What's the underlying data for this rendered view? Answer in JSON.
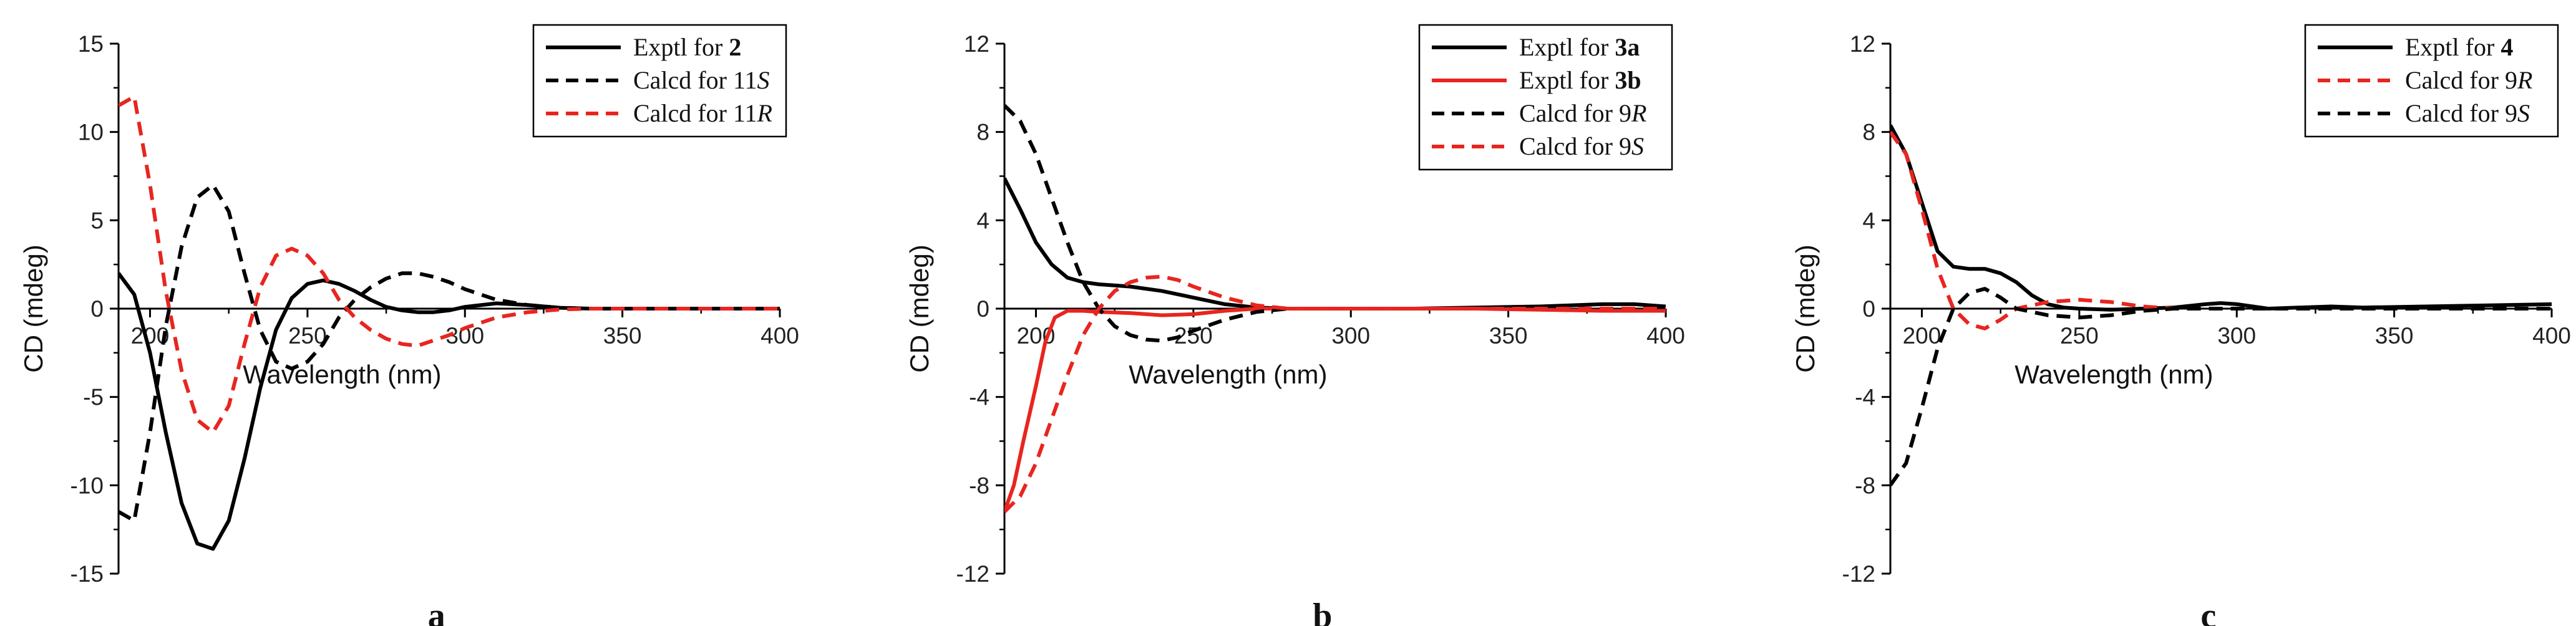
{
  "chart_data": [
    {
      "type": "line",
      "panel_label": "a",
      "xlabel": "Wavelength (nm)",
      "ylabel": "CD (mdeg)",
      "xlim": [
        190,
        400
      ],
      "ylim": [
        -15,
        15
      ],
      "xticks": [
        200,
        250,
        300,
        350,
        400
      ],
      "yticks": [
        -15,
        -10,
        -5,
        0,
        5,
        10,
        15
      ],
      "legend_position": "top-right",
      "series": [
        {
          "name": "Exptl for 2",
          "name_parts": [
            [
              "Exptl for ",
              ""
            ],
            [
              "2",
              "b"
            ]
          ],
          "color": "#000000",
          "dash": "solid",
          "x": [
            190,
            195,
            200,
            205,
            210,
            215,
            220,
            225,
            230,
            235,
            240,
            245,
            250,
            255,
            260,
            265,
            270,
            275,
            280,
            285,
            290,
            295,
            300,
            310,
            320,
            330,
            340,
            350,
            360,
            380,
            400
          ],
          "y": [
            2.0,
            0.8,
            -2.5,
            -7.0,
            -11.0,
            -13.3,
            -13.6,
            -12.0,
            -8.5,
            -4.5,
            -1.2,
            0.6,
            1.4,
            1.6,
            1.4,
            1.0,
            0.5,
            0.1,
            -0.1,
            -0.2,
            -0.2,
            -0.1,
            0.1,
            0.3,
            0.2,
            0.05,
            0,
            0,
            0,
            0,
            0
          ]
        },
        {
          "name": "Calcd for 11S",
          "name_parts": [
            [
              "Calcd for 11",
              ""
            ],
            [
              "S",
              "i"
            ]
          ],
          "color": "#000000",
          "dash": "dashed",
          "x": [
            190,
            195,
            200,
            205,
            210,
            215,
            220,
            225,
            230,
            235,
            240,
            245,
            250,
            255,
            260,
            265,
            270,
            275,
            280,
            285,
            290,
            295,
            300,
            310,
            320,
            330,
            340,
            350,
            360,
            380,
            400
          ],
          "y": [
            -11.5,
            -12.0,
            -7.0,
            -1.0,
            3.5,
            6.3,
            7.0,
            5.5,
            2.0,
            -1.2,
            -3.0,
            -3.4,
            -3.0,
            -2.0,
            -0.5,
            0.5,
            1.2,
            1.7,
            2.0,
            2.0,
            1.8,
            1.5,
            1.1,
            0.5,
            0.2,
            0.05,
            0,
            0,
            0,
            0,
            0
          ]
        },
        {
          "name": "Calcd for 11R",
          "name_parts": [
            [
              "Calcd for 11",
              ""
            ],
            [
              "R",
              "i"
            ]
          ],
          "color": "#e8251f",
          "dash": "dashed",
          "x": [
            190,
            195,
            200,
            205,
            210,
            215,
            220,
            225,
            230,
            235,
            240,
            245,
            250,
            255,
            260,
            265,
            270,
            275,
            280,
            285,
            290,
            295,
            300,
            310,
            320,
            330,
            340,
            350,
            360,
            380,
            400
          ],
          "y": [
            11.5,
            12.0,
            7.0,
            1.0,
            -3.5,
            -6.3,
            -7.0,
            -5.5,
            -2.0,
            1.2,
            3.0,
            3.4,
            3.0,
            2.0,
            0.5,
            -0.5,
            -1.2,
            -1.7,
            -2.0,
            -2.1,
            -1.8,
            -1.5,
            -1.1,
            -0.5,
            -0.2,
            -0.05,
            0,
            0,
            0,
            0,
            0
          ]
        }
      ]
    },
    {
      "type": "line",
      "panel_label": "b",
      "xlabel": "Wavelength (nm)",
      "ylabel": "CD (mdeg)",
      "xlim": [
        190,
        400
      ],
      "ylim": [
        -12,
        12
      ],
      "xticks": [
        200,
        250,
        300,
        350,
        400
      ],
      "yticks": [
        -12,
        -8,
        -4,
        0,
        4,
        8,
        12
      ],
      "legend_position": "top-right",
      "series": [
        {
          "name": "Exptl for 3a",
          "name_parts": [
            [
              "Exptl for ",
              ""
            ],
            [
              "3a",
              "b"
            ]
          ],
          "color": "#000000",
          "dash": "solid",
          "x": [
            190,
            195,
            200,
            205,
            210,
            215,
            220,
            225,
            230,
            240,
            250,
            260,
            270,
            280,
            290,
            300,
            320,
            340,
            360,
            380,
            390,
            400
          ],
          "y": [
            5.9,
            4.5,
            3.0,
            2.0,
            1.4,
            1.2,
            1.1,
            1.05,
            1.0,
            0.8,
            0.5,
            0.2,
            0.05,
            0,
            0,
            0,
            0,
            0.05,
            0.1,
            0.2,
            0.2,
            0.1
          ]
        },
        {
          "name": "Exptl for 3b",
          "name_parts": [
            [
              "Exptl for ",
              ""
            ],
            [
              "3b",
              "b"
            ]
          ],
          "color": "#e8251f",
          "dash": "solid",
          "x": [
            190,
            193,
            196,
            200,
            203,
            206,
            210,
            215,
            220,
            230,
            240,
            250,
            260,
            270,
            280,
            300,
            320,
            340,
            360,
            380,
            400
          ],
          "y": [
            -9.2,
            -8.0,
            -6.0,
            -3.5,
            -1.5,
            -0.4,
            -0.1,
            -0.1,
            -0.15,
            -0.2,
            -0.3,
            -0.25,
            -0.1,
            0,
            0,
            0,
            0,
            0,
            -0.05,
            -0.1,
            -0.1
          ]
        },
        {
          "name": "Calcd for 9R",
          "name_parts": [
            [
              "Calcd for 9",
              ""
            ],
            [
              "R",
              "i"
            ]
          ],
          "color": "#000000",
          "dash": "dashed",
          "x": [
            190,
            195,
            200,
            205,
            210,
            215,
            220,
            225,
            230,
            235,
            240,
            245,
            250,
            260,
            270,
            280,
            290,
            300,
            320,
            340,
            360,
            380,
            400
          ],
          "y": [
            9.2,
            8.5,
            7.0,
            5.0,
            3.0,
            1.2,
            0.0,
            -0.8,
            -1.2,
            -1.4,
            -1.45,
            -1.3,
            -1.0,
            -0.5,
            -0.15,
            0,
            0,
            0,
            0,
            0,
            0,
            0,
            0
          ]
        },
        {
          "name": "Calcd for 9S",
          "name_parts": [
            [
              "Calcd for 9",
              ""
            ],
            [
              "S",
              "i"
            ]
          ],
          "color": "#e8251f",
          "dash": "dashed",
          "x": [
            190,
            195,
            200,
            205,
            210,
            215,
            220,
            225,
            230,
            235,
            240,
            245,
            250,
            260,
            270,
            280,
            290,
            300,
            320,
            340,
            360,
            380,
            400
          ],
          "y": [
            -9.2,
            -8.5,
            -7.0,
            -5.0,
            -3.0,
            -1.2,
            0.0,
            0.8,
            1.2,
            1.4,
            1.45,
            1.3,
            1.0,
            0.5,
            0.15,
            0,
            0,
            0,
            0,
            0,
            0,
            0,
            0
          ]
        }
      ]
    },
    {
      "type": "line",
      "panel_label": "c",
      "xlabel": "Wavelength (nm)",
      "ylabel": "CD (mdeg)",
      "xlim": [
        190,
        400
      ],
      "ylim": [
        -12,
        12
      ],
      "xticks": [
        200,
        250,
        300,
        350,
        400
      ],
      "yticks": [
        -12,
        -8,
        -4,
        0,
        4,
        8,
        12
      ],
      "legend_position": "top-right",
      "series": [
        {
          "name": "Exptl for 4",
          "name_parts": [
            [
              "Exptl for ",
              ""
            ],
            [
              "4",
              "b"
            ]
          ],
          "color": "#000000",
          "dash": "solid",
          "x": [
            190,
            195,
            200,
            205,
            210,
            215,
            220,
            225,
            230,
            235,
            240,
            245,
            250,
            260,
            270,
            280,
            290,
            295,
            300,
            310,
            320,
            330,
            340,
            360,
            380,
            400
          ],
          "y": [
            8.3,
            7.0,
            4.8,
            2.6,
            1.9,
            1.8,
            1.8,
            1.6,
            1.2,
            0.6,
            0.2,
            0.05,
            0,
            -0.05,
            0,
            0.05,
            0.2,
            0.25,
            0.2,
            0,
            0.05,
            0.1,
            0.05,
            0.1,
            0.15,
            0.2
          ]
        },
        {
          "name": "Calcd for 9R",
          "name_parts": [
            [
              "Calcd for 9",
              ""
            ],
            [
              "R",
              "i"
            ]
          ],
          "color": "#e8251f",
          "dash": "dashed",
          "x": [
            190,
            195,
            200,
            205,
            210,
            215,
            220,
            225,
            230,
            240,
            250,
            260,
            270,
            280,
            290,
            300,
            320,
            340,
            360,
            380,
            400
          ],
          "y": [
            8.0,
            7.0,
            4.5,
            1.8,
            0.0,
            -0.7,
            -0.9,
            -0.5,
            0.0,
            0.3,
            0.4,
            0.3,
            0.1,
            0,
            0,
            0,
            0,
            0,
            0,
            0,
            0
          ]
        },
        {
          "name": "Calcd for 9S",
          "name_parts": [
            [
              "Calcd for 9",
              ""
            ],
            [
              "S",
              "i"
            ]
          ],
          "color": "#000000",
          "dash": "dashed",
          "x": [
            190,
            195,
            200,
            205,
            210,
            215,
            220,
            225,
            230,
            240,
            250,
            260,
            270,
            280,
            290,
            300,
            320,
            340,
            360,
            380,
            400
          ],
          "y": [
            -8.0,
            -7.0,
            -4.5,
            -1.8,
            0.0,
            0.7,
            0.9,
            0.5,
            0.0,
            -0.3,
            -0.4,
            -0.3,
            -0.1,
            0,
            0,
            0,
            0,
            0,
            0,
            0,
            0
          ]
        }
      ]
    }
  ]
}
